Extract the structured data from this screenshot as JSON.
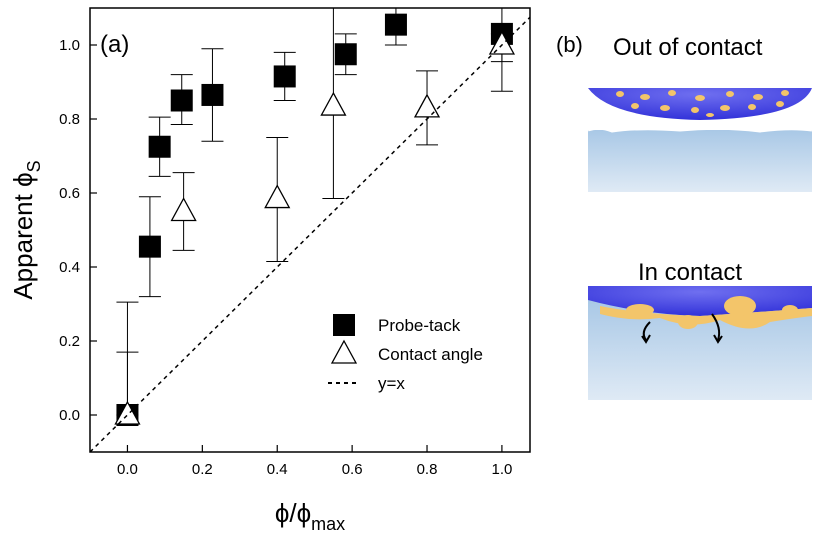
{
  "chart_data": {
    "type": "scatter",
    "panel_label": "(a)",
    "xlabel": {
      "text": "ϕ/ϕ",
      "sub": "max"
    },
    "ylabel": {
      "text": "Apparent ϕ",
      "sub": "S"
    },
    "xlim": [
      -0.1,
      1.075
    ],
    "ylim": [
      -0.1,
      1.1
    ],
    "xticks": [
      {
        "value": 0,
        "label": "0.0"
      },
      {
        "value": 0.2,
        "label": "0.2"
      },
      {
        "value": 0.4,
        "label": "0.4"
      },
      {
        "value": 0.6,
        "label": "0.6"
      },
      {
        "value": 0.8,
        "label": "0.8"
      },
      {
        "value": 1,
        "label": "1.0"
      }
    ],
    "yticks": [
      {
        "value": 0,
        "label": "0.0"
      },
      {
        "value": 0.2,
        "label": "0.2"
      },
      {
        "value": 0.4,
        "label": "0.4"
      },
      {
        "value": 0.6,
        "label": "0.6"
      },
      {
        "value": 0.8,
        "label": "0.8"
      },
      {
        "value": 1,
        "label": "1.0"
      }
    ],
    "series": [
      {
        "name": "Probe-tack",
        "marker": "square",
        "color": "#000000",
        "x": [
          0,
          0.06,
          0.086,
          0.145,
          0.227,
          0.42,
          0.583,
          0.717,
          1.0
        ],
        "values": [
          0,
          0.455,
          0.725,
          0.85,
          0.865,
          0.915,
          0.975,
          1.055,
          1.03
        ],
        "lower": [
          0,
          0.32,
          0.645,
          0.785,
          0.74,
          0.85,
          0.92,
          1.0,
          0.955
        ],
        "upper": [
          0.17,
          0.59,
          0.805,
          0.92,
          0.99,
          0.98,
          1.03,
          1.12,
          1.12
        ]
      },
      {
        "name": "Contact angle",
        "marker": "triangle-open",
        "color": "#000000",
        "x": [
          0,
          0.15,
          0.4,
          0.55,
          0.8,
          1.0
        ],
        "values": [
          0,
          0.55,
          0.585,
          0.835,
          0.83,
          1.0
        ],
        "lower": [
          0,
          0.445,
          0.415,
          0.585,
          0.73,
          0.875
        ],
        "upper": [
          0.305,
          0.655,
          0.75,
          1.12,
          0.93,
          1.03
        ]
      },
      {
        "name": "y=x",
        "marker": "dashed-line",
        "color": "#000000"
      }
    ]
  },
  "panel_b": {
    "label": "(b)",
    "top_caption": "Out of contact",
    "bottom_caption": "In contact"
  }
}
